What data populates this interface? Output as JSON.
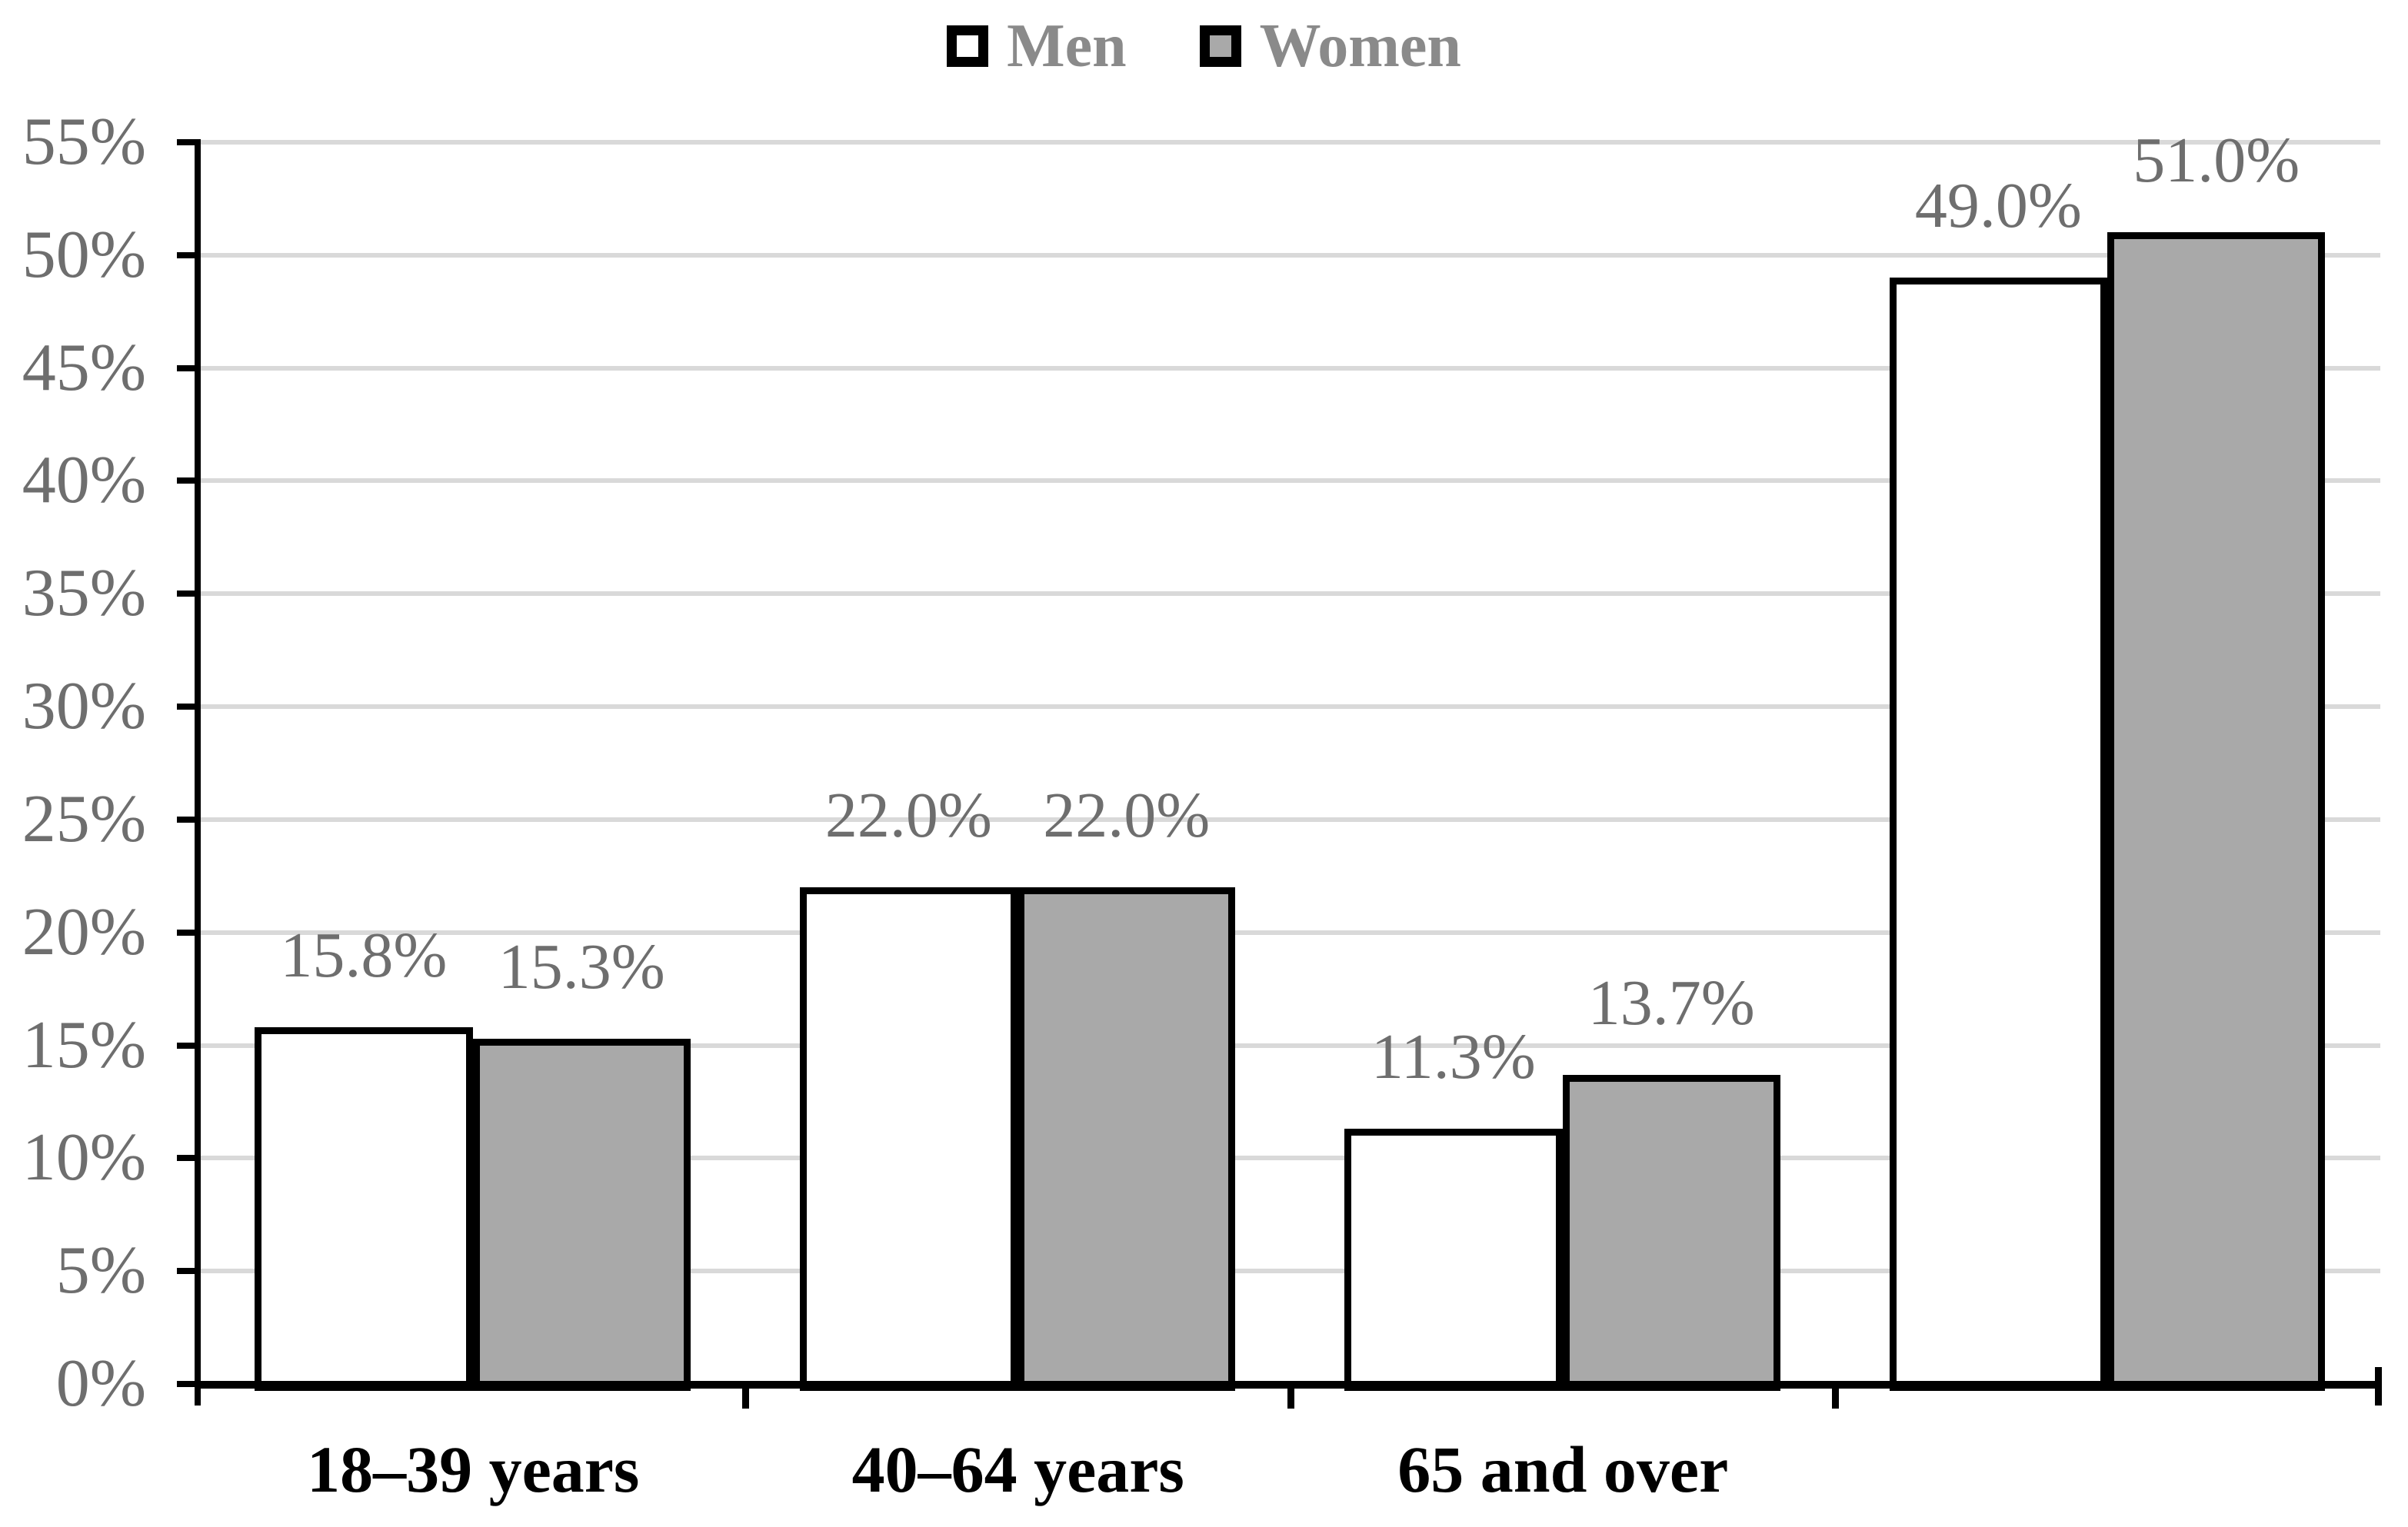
{
  "chart_data": {
    "type": "bar",
    "title": "",
    "categories": [
      "18–39 years",
      "40–64 years",
      "65 and over",
      ""
    ],
    "series": [
      {
        "name": "Men",
        "fill": "#FFFFFF",
        "values": [
          15.8,
          22.0,
          11.3,
          49.0
        ],
        "data_labels": [
          "15.8%",
          "22.0%",
          "11.3%",
          "49.0%"
        ]
      },
      {
        "name": "Women",
        "fill": "#A9A9A9",
        "values": [
          15.3,
          22.0,
          13.7,
          51.0
        ],
        "data_labels": [
          "15.3%",
          "22.0%",
          "13.7%",
          "51.0%"
        ]
      }
    ],
    "y_axis": {
      "min": 0,
      "max": 55,
      "step": 5,
      "tick_labels": [
        "0%",
        "5%",
        "10%",
        "15%",
        "20%",
        "25%",
        "30%",
        "35%",
        "40%",
        "45%",
        "50%",
        "55%"
      ]
    },
    "legend_position": "top-center",
    "grid": true,
    "colors": {
      "background": "#FFFFFF",
      "bar_border": "#000000",
      "axis": "#000000",
      "gridline": "#D9D9D9",
      "tick_label": "#6E6E6E",
      "data_label": "#6E6E6E",
      "legend_text": "#8A8A8A",
      "category_label": "#000000"
    }
  }
}
